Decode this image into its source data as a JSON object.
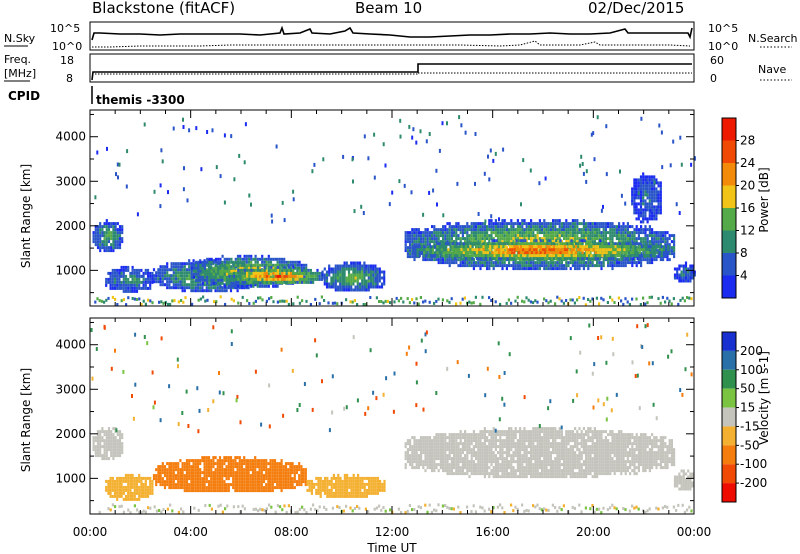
{
  "header": {
    "station": "Blackstone (fitACF)",
    "beam": "Beam 10",
    "date": "02/Dec/2015"
  },
  "nsky_panel": {
    "left_label": "N.Sky",
    "left_ticks": [
      "10^5",
      "10^0"
    ],
    "right_ticks": [
      "10^5",
      "10^0"
    ],
    "right_label": "N.Search",
    "right_label_style": "dotted"
  },
  "freq_panel": {
    "left_label_line1": "Freq.",
    "left_label_line2": "[MHz]",
    "left_ticks": [
      "18",
      "8"
    ],
    "right_ticks": [
      "60",
      "0"
    ],
    "right_label": "Nave",
    "right_label_style": "dotted"
  },
  "cpid": {
    "label": "CPID",
    "value": "themis -3300"
  },
  "colors": {
    "power": [
      "#1b2cf0",
      "#2a55c8",
      "#2e8a6e",
      "#54aa48",
      "#f2c418",
      "#f48a0a",
      "#f04a04",
      "#ee1a00"
    ],
    "velocity": [
      "#1830d0",
      "#2a70a8",
      "#30904e",
      "#7ac442",
      "#c4c4bc",
      "#f4b030",
      "#f47d0e",
      "#f04a04",
      "#ee0c00"
    ]
  },
  "chart_data": [
    {
      "type": "heatmap",
      "name": "power",
      "ylabel": "Slant Range [km]",
      "xlabel": "",
      "xlim": [
        "00:00",
        "24:00"
      ],
      "ylim": [
        200,
        4600
      ],
      "yticks": [
        1000,
        2000,
        3000,
        4000
      ],
      "xticks": [
        "00:00",
        "04:00",
        "08:00",
        "12:00",
        "16:00",
        "20:00",
        "00:00"
      ],
      "colorbar": {
        "label": "Power [dB]",
        "ticks": [
          4,
          8,
          12,
          16,
          20,
          24,
          28
        ],
        "range": [
          0,
          32
        ]
      },
      "regions": [
        {
          "t_start": 0.1,
          "t_end": 1.3,
          "range_start": 1450,
          "range_end": 2150,
          "core_value": 14
        },
        {
          "t_start": 0.6,
          "t_end": 2.5,
          "range_start": 550,
          "range_end": 1100,
          "core_value": 12
        },
        {
          "t_start": 2.5,
          "t_end": 6.8,
          "range_start": 550,
          "range_end": 1250,
          "core_value": 16
        },
        {
          "t_start": 4.0,
          "t_end": 8.6,
          "range_start": 650,
          "range_end": 1350,
          "core_value": 20
        },
        {
          "t_start": 5.5,
          "t_end": 9.2,
          "range_start": 700,
          "range_end": 1100,
          "core_value": 28
        },
        {
          "t_start": 9.2,
          "t_end": 11.7,
          "range_start": 550,
          "range_end": 1200,
          "core_value": 16
        },
        {
          "t_start": 12.5,
          "t_end": 23.2,
          "range_start": 1050,
          "range_end": 2150,
          "core_value": 20
        },
        {
          "t_start": 12.8,
          "t_end": 23.0,
          "range_start": 1250,
          "range_end": 1700,
          "core_value": 28
        },
        {
          "t_start": 21.5,
          "t_end": 22.7,
          "range_start": 2100,
          "range_end": 3200,
          "core_value": 8
        },
        {
          "t_start": 23.2,
          "t_end": 24.0,
          "range_start": 750,
          "range_end": 1200,
          "core_value": 10
        }
      ]
    },
    {
      "type": "heatmap",
      "name": "velocity",
      "ylabel": "Slant Range [km]",
      "xlabel": "Time UT",
      "xlim": [
        "00:00",
        "24:00"
      ],
      "ylim": [
        200,
        4600
      ],
      "yticks": [
        1000,
        2000,
        3000,
        4000
      ],
      "xticks": [
        "00:00",
        "04:00",
        "08:00",
        "12:00",
        "16:00",
        "20:00",
        "00:00"
      ],
      "colorbar": {
        "label": "Velocity [m s-1]",
        "ticks": [
          200,
          100,
          50,
          15,
          -15,
          -50,
          -100,
          -200
        ]
      },
      "regions": [
        {
          "t_start": 0.1,
          "t_end": 1.3,
          "range_start": 1450,
          "range_end": 2150,
          "core_value": 0
        },
        {
          "t_start": 0.6,
          "t_end": 2.5,
          "range_start": 550,
          "range_end": 1100,
          "core_value": -30
        },
        {
          "t_start": 2.5,
          "t_end": 8.6,
          "range_start": 700,
          "range_end": 1500,
          "core_value": -75
        },
        {
          "t_start": 8.6,
          "t_end": 11.7,
          "range_start": 600,
          "range_end": 1100,
          "core_value": -30
        },
        {
          "t_start": 12.5,
          "t_end": 23.2,
          "range_start": 1050,
          "range_end": 2150,
          "core_value": 0
        },
        {
          "t_start": 23.2,
          "t_end": 24.0,
          "range_start": 750,
          "range_end": 1200,
          "core_value": 0
        }
      ]
    }
  ]
}
